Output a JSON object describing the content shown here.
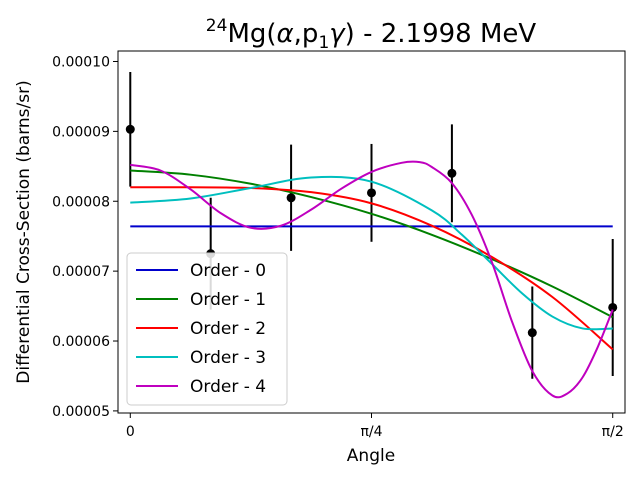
{
  "chart_data": {
    "type": "line",
    "title": {
      "sup": "24",
      "main": "Mg(",
      "alpha": "α",
      "comma_p": ",p",
      "sub": "1",
      "gamma": "γ",
      "rest": ") - 2.1998 MeV"
    },
    "xlabel": "Angle",
    "ylabel": "Differential Cross-Section (barns/sr)",
    "xlim": [
      -0.04,
      1.6108
    ],
    "ylim": [
      4.97e-05,
      0.0001015
    ],
    "x_ticks": [
      {
        "value": 0,
        "label": "0"
      },
      {
        "value": 0.7854,
        "label": "π/4"
      },
      {
        "value": 1.5708,
        "label": "π/2"
      }
    ],
    "y_ticks": [
      {
        "value": 5e-05,
        "label": "0.00005"
      },
      {
        "value": 6e-05,
        "label": "0.00006"
      },
      {
        "value": 7e-05,
        "label": "0.00007"
      },
      {
        "value": 8e-05,
        "label": "0.00008"
      },
      {
        "value": 9e-05,
        "label": "0.00009"
      },
      {
        "value": 0.0001,
        "label": "0.00010"
      }
    ],
    "data_points": {
      "color": "#000000",
      "x": [
        0.0,
        0.2618,
        0.5236,
        0.7854,
        1.0472,
        1.309,
        1.5708
      ],
      "y": [
        9.03e-05,
        7.25e-05,
        8.05e-05,
        8.12e-05,
        8.4e-05,
        6.12e-05,
        6.48e-05
      ],
      "err": [
        8.2e-06,
        8e-06,
        7.6e-06,
        7e-06,
        7e-06,
        6.6e-06,
        9.8e-06
      ]
    },
    "legend_position": "lower-left",
    "series": [
      {
        "name": "Order - 0",
        "color": "#0000cc",
        "x": [
          0,
          0.7854,
          1.5708
        ],
        "y": [
          7.64e-05,
          7.64e-05,
          7.64e-05
        ]
      },
      {
        "name": "Order - 1",
        "color": "#008000",
        "x": [
          0,
          0.1963,
          0.3927,
          0.589,
          0.7854,
          0.9817,
          1.1781,
          1.3744,
          1.5708
        ],
        "y": [
          8.44e-05,
          8.38e-05,
          8.25e-05,
          8.06e-05,
          7.82e-05,
          7.52e-05,
          7.17e-05,
          6.78e-05,
          6.34e-05
        ]
      },
      {
        "name": "Order - 2",
        "color": "#ff0000",
        "x": [
          0,
          0.1963,
          0.3927,
          0.589,
          0.7854,
          0.9817,
          1.1781,
          1.3744,
          1.5708
        ],
        "y": [
          8.2e-05,
          8.2e-05,
          8.19e-05,
          8.13e-05,
          7.97e-05,
          7.65e-05,
          7.2e-05,
          6.63e-05,
          5.88e-05
        ]
      },
      {
        "name": "Order - 3",
        "color": "#00bfbf",
        "x": [
          0,
          0.1963,
          0.3927,
          0.589,
          0.7854,
          0.9817,
          1.0799,
          1.1781,
          1.2763,
          1.3744,
          1.4726,
          1.5708
        ],
        "y": [
          7.98e-05,
          8.04e-05,
          8.19e-05,
          8.34e-05,
          8.28e-05,
          7.87e-05,
          7.52e-05,
          7.1e-05,
          6.68e-05,
          6.35e-05,
          6.18e-05,
          6.18e-05
        ]
      },
      {
        "name": "Order - 4",
        "color": "#bf00bf",
        "x": [
          0,
          0.0982,
          0.1963,
          0.2945,
          0.3927,
          0.4909,
          0.589,
          0.6872,
          0.7854,
          0.8836,
          0.9425,
          0.9817,
          1.0472,
          1.1126,
          1.1781,
          1.2436,
          1.309,
          1.3744,
          1.4235,
          1.4726,
          1.5217,
          1.5708
        ],
        "y": [
          8.52e-05,
          8.44e-05,
          8.17e-05,
          7.83e-05,
          7.62e-05,
          7.65e-05,
          7.88e-05,
          8.18e-05,
          8.42e-05,
          8.55e-05,
          8.56e-05,
          8.49e-05,
          8.26e-05,
          7.8e-05,
          7.12e-05,
          6.27e-05,
          5.57e-05,
          5.22e-05,
          5.25e-05,
          5.48e-05,
          5.91e-05,
          6.45e-05
        ]
      }
    ]
  }
}
